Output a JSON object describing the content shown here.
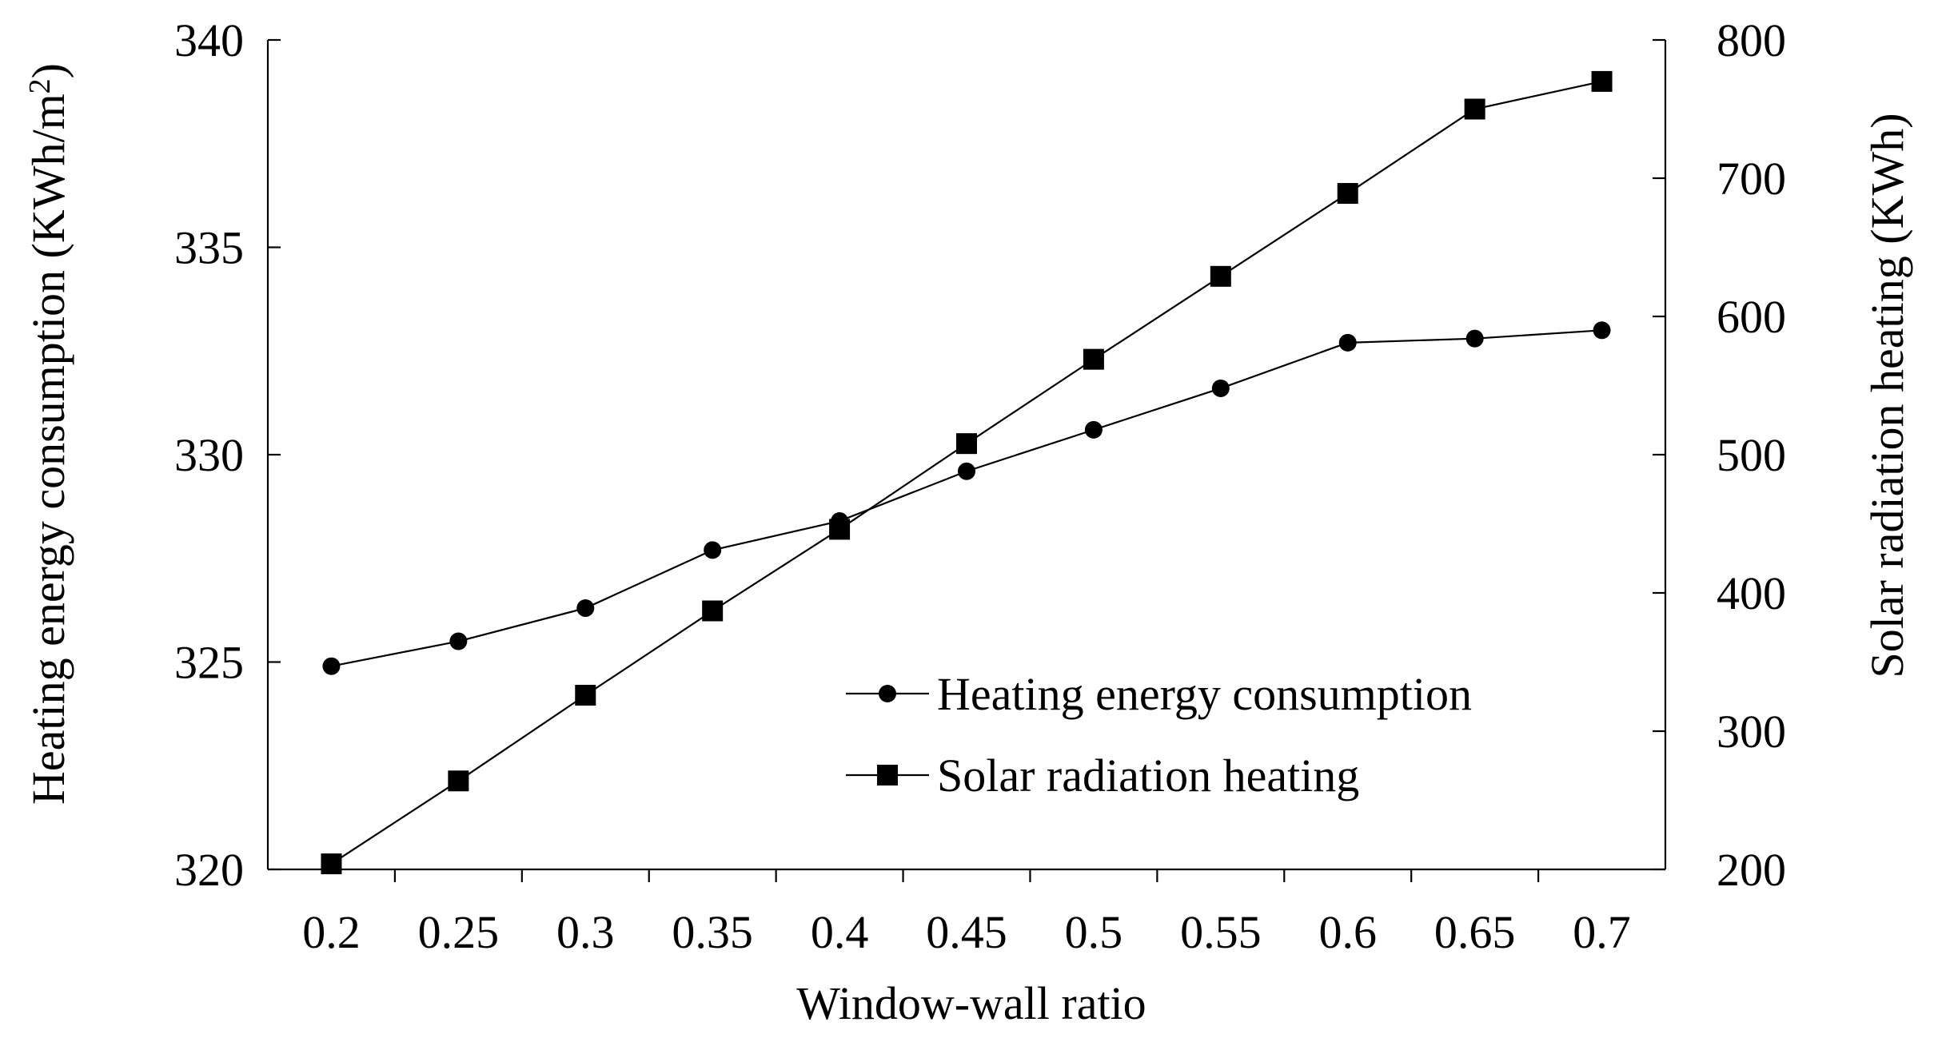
{
  "chart_data": {
    "type": "line",
    "x": [
      0.2,
      0.25,
      0.3,
      0.35,
      0.4,
      0.45,
      0.5,
      0.55,
      0.6,
      0.65,
      0.7
    ],
    "x_tick_labels": [
      "0.2",
      "0.25",
      "0.3",
      "0.35",
      "0.4",
      "0.45",
      "0.5",
      "0.55",
      "0.6",
      "0.65",
      "0.7"
    ],
    "xlabel": "Window-wall ratio",
    "ylabel_left_prefix": "Heating energy consumption (KWh/m",
    "ylabel_left_sup": "2",
    "ylabel_left_suffix": ")",
    "ylabel_right": "Solar radiation heating (KWh)",
    "ylim_left": [
      320,
      340
    ],
    "yticks_left": [
      "320",
      "325",
      "330",
      "335",
      "340"
    ],
    "ylim_right": [
      200,
      800
    ],
    "yticks_right": [
      "200",
      "300",
      "400",
      "500",
      "600",
      "700",
      "800"
    ],
    "legend_position": "center-right",
    "series": [
      {
        "name": "Heating energy consumption",
        "axis": "left",
        "marker": "circle",
        "values": [
          324.9,
          325.5,
          326.3,
          327.7,
          328.4,
          329.6,
          330.6,
          331.6,
          332.7,
          332.8,
          333.0
        ]
      },
      {
        "name": "Solar radiation heating",
        "axis": "right",
        "marker": "square",
        "values": [
          204,
          264,
          326,
          387,
          446,
          508,
          569,
          629,
          689,
          750,
          770
        ]
      }
    ]
  }
}
